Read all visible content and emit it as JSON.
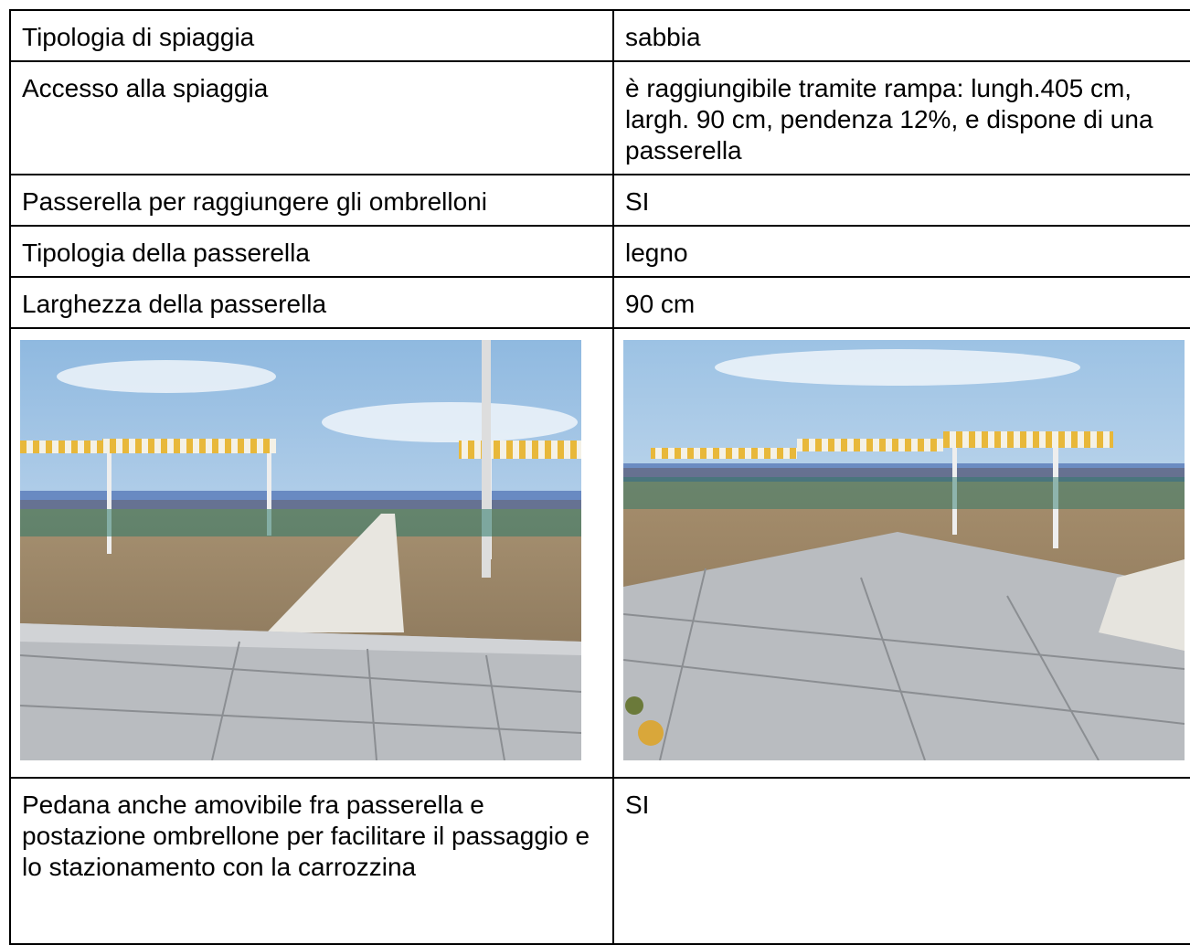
{
  "table": {
    "rows": [
      [
        "Tipologia di spiaggia",
        "sabbia"
      ],
      [
        "Accesso alla spiaggia",
        "è raggiungibile tramite rampa: lungh.405 cm, largh. 90 cm, pendenza 12%, e dispone di una passerella"
      ],
      [
        "Passerella per raggiungere gli ombrelloni",
        "SI"
      ],
      [
        "Tipologia della passerella",
        "legno"
      ],
      [
        "Larghezza della passerella",
        "90 cm"
      ],
      [
        "Pedana anche amovibile fra passerella e postazione ombrellone per facilitare il passaggio e lo stazionamento con la carrozzina",
        "SI"
      ]
    ]
  }
}
